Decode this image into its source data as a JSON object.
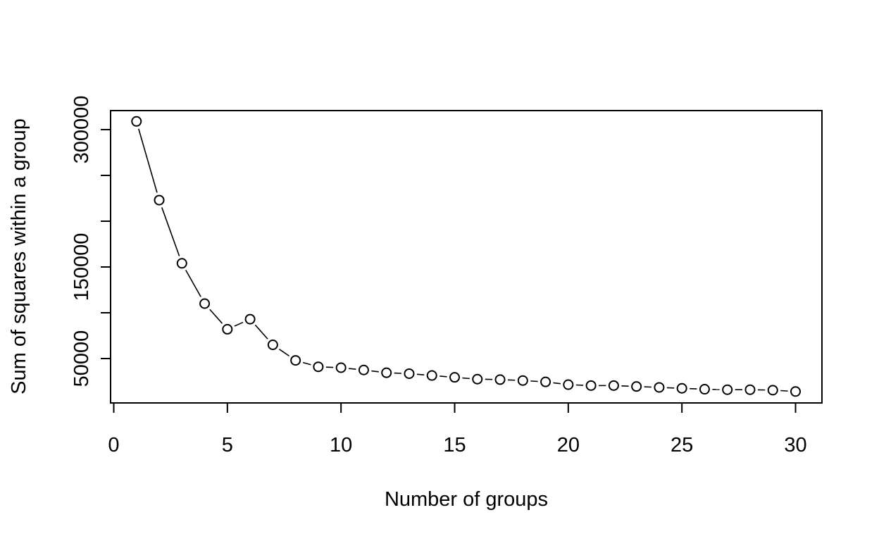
{
  "chart_data": {
    "type": "line",
    "title": "",
    "xlabel": "Number of groups",
    "ylabel": "Sum of squares within a group",
    "xlim": [
      0,
      30
    ],
    "ylim": [
      0,
      300000
    ],
    "x_ticks": [
      0,
      5,
      10,
      15,
      20,
      25,
      30
    ],
    "y_ticks": [
      50000,
      100000,
      150000,
      200000,
      250000,
      300000
    ],
    "y_tick_labels": [
      "50000",
      "",
      "150000",
      "",
      "",
      "300000"
    ],
    "grid": false,
    "legend": "none",
    "line_color": "#000000",
    "marker": "open-circle",
    "series": [
      {
        "x": [
          1,
          2,
          3,
          4,
          5,
          6,
          7,
          8,
          9,
          10,
          11,
          12,
          13,
          14,
          15,
          16,
          17,
          18,
          19,
          20,
          21,
          22,
          23,
          24,
          25,
          26,
          27,
          28,
          29,
          30
        ],
        "values": [
          309000,
          223000,
          154000,
          110000,
          82000,
          93000,
          65000,
          48000,
          41000,
          40000,
          37500,
          34500,
          33500,
          31500,
          29500,
          27500,
          27000,
          26000,
          24500,
          21500,
          20500,
          20500,
          19500,
          18500,
          17500,
          16500,
          16000,
          16000,
          15500,
          14000
        ]
      }
    ]
  }
}
